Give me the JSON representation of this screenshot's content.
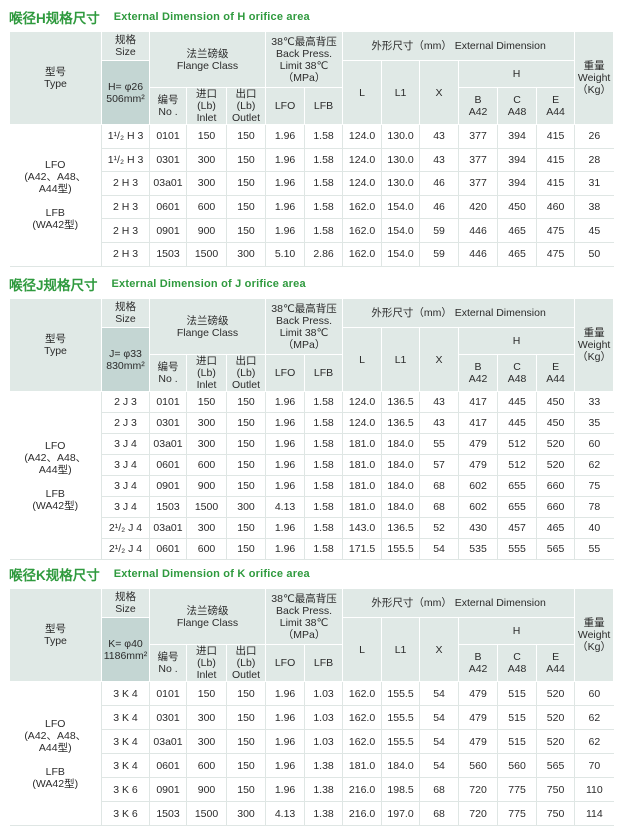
{
  "header_labels": {
    "type": [
      "型号",
      "Type"
    ],
    "size": [
      "规格",
      "Size"
    ],
    "flange": [
      "法兰磅级",
      "Flange  Class"
    ],
    "back_press": [
      "38℃最高背压",
      "Back Press.",
      "Limit 38℃",
      "（MPa）"
    ],
    "ext_dim": "外形尺寸（mm）   External Dimension",
    "weight": [
      "重量",
      "Weight",
      "（Kg）"
    ],
    "L": "L",
    "L1": "L1",
    "X": "X",
    "H": "H",
    "no": [
      "编号",
      "No ."
    ],
    "inlet": [
      "进口(Lb)",
      "Inlet"
    ],
    "outlet": [
      "出口(Lb)",
      "Outlet"
    ],
    "lfo": "LFO",
    "lfb": "LFB",
    "B": [
      "B",
      "A42"
    ],
    "C": [
      "C",
      "A48"
    ],
    "E": [
      "E",
      "A44"
    ]
  },
  "type_text": {
    "lfo": [
      "LFO",
      "(A42、A48、",
      "A44型)"
    ],
    "lfb": [
      "LFB",
      "(WA42型)"
    ]
  },
  "sections": [
    {
      "title_cn": "喉径H规格尺寸",
      "title_en": "External Dimension of H orifice area",
      "size_value": [
        "H= φ26",
        "506mm²"
      ],
      "rows": [
        [
          "1¹/₂ H 3",
          "0101",
          "150",
          "150",
          "1.96",
          "1.58",
          "124.0",
          "130.0",
          "43",
          "377",
          "394",
          "415",
          "26"
        ],
        [
          "1¹/₂ H 3",
          "0301",
          "300",
          "150",
          "1.96",
          "1.58",
          "124.0",
          "130.0",
          "43",
          "377",
          "394",
          "415",
          "28"
        ],
        [
          "2 H 3",
          "03a01",
          "300",
          "150",
          "1.96",
          "1.58",
          "124.0",
          "130.0",
          "46",
          "377",
          "394",
          "415",
          "31"
        ],
        [
          "2 H 3",
          "0601",
          "600",
          "150",
          "1.96",
          "1.58",
          "162.0",
          "154.0",
          "46",
          "420",
          "450",
          "460",
          "38"
        ],
        [
          "2 H 3",
          "0901",
          "900",
          "150",
          "1.96",
          "1.58",
          "162.0",
          "154.0",
          "59",
          "446",
          "465",
          "475",
          "45"
        ],
        [
          "2 H 3",
          "1503",
          "1500",
          "300",
          "5.10",
          "2.86",
          "162.0",
          "154.0",
          "59",
          "446",
          "465",
          "475",
          "50"
        ]
      ]
    },
    {
      "title_cn": "喉径J规格尺寸",
      "title_en": "External Dimension of J orifice area",
      "size_value": [
        "J= φ33",
        "830mm²"
      ],
      "rows": [
        [
          "2 J 3",
          "0101",
          "150",
          "150",
          "1.96",
          "1.58",
          "124.0",
          "136.5",
          "43",
          "417",
          "445",
          "450",
          "33"
        ],
        [
          "2 J 3",
          "0301",
          "300",
          "150",
          "1.96",
          "1.58",
          "124.0",
          "136.5",
          "43",
          "417",
          "445",
          "450",
          "35"
        ],
        [
          "3 J 4",
          "03a01",
          "300",
          "150",
          "1.96",
          "1.58",
          "181.0",
          "184.0",
          "55",
          "479",
          "512",
          "520",
          "60"
        ],
        [
          "3 J 4",
          "0601",
          "600",
          "150",
          "1.96",
          "1.58",
          "181.0",
          "184.0",
          "57",
          "479",
          "512",
          "520",
          "62"
        ],
        [
          "3 J 4",
          "0901",
          "900",
          "150",
          "1.96",
          "1.58",
          "181.0",
          "184.0",
          "68",
          "602",
          "655",
          "660",
          "75"
        ],
        [
          "3 J 4",
          "1503",
          "1500",
          "300",
          "4.13",
          "1.58",
          "181.0",
          "184.0",
          "68",
          "602",
          "655",
          "660",
          "78"
        ],
        [
          "2¹/₂ J 4",
          "03a01",
          "300",
          "150",
          "1.96",
          "1.58",
          "143.0",
          "136.5",
          "52",
          "430",
          "457",
          "465",
          "40"
        ],
        [
          "2¹/₂ J 4",
          "0601",
          "600",
          "150",
          "1.96",
          "1.58",
          "171.5",
          "155.5",
          "54",
          "535",
          "555",
          "565",
          "55"
        ]
      ]
    },
    {
      "title_cn": "喉径K规格尺寸",
      "title_en": "External Dimension of K orifice area",
      "size_value": [
        "K= φ40",
        "1186mm²"
      ],
      "rows": [
        [
          "3 K 4",
          "0101",
          "150",
          "150",
          "1.96",
          "1.03",
          "162.0",
          "155.5",
          "54",
          "479",
          "515",
          "520",
          "60"
        ],
        [
          "3 K 4",
          "0301",
          "300",
          "150",
          "1.96",
          "1.03",
          "162.0",
          "155.5",
          "54",
          "479",
          "515",
          "520",
          "62"
        ],
        [
          "3 K 4",
          "03a01",
          "300",
          "150",
          "1.96",
          "1.03",
          "162.0",
          "155.5",
          "54",
          "479",
          "515",
          "520",
          "62"
        ],
        [
          "3 K 4",
          "0601",
          "600",
          "150",
          "1.96",
          "1.38",
          "181.0",
          "184.0",
          "54",
          "560",
          "560",
          "565",
          "70"
        ],
        [
          "3 K 6",
          "0901",
          "900",
          "150",
          "1.96",
          "1.38",
          "216.0",
          "198.5",
          "68",
          "720",
          "775",
          "750",
          "110"
        ],
        [
          "3 K 6",
          "1503",
          "1500",
          "300",
          "4.13",
          "1.38",
          "216.0",
          "197.0",
          "68",
          "720",
          "775",
          "750",
          "114"
        ]
      ]
    }
  ],
  "colors": {
    "title": "#2f9a3e",
    "header_bg": "#e0e9e6",
    "size_cell_bg": "#c4d6d3"
  }
}
